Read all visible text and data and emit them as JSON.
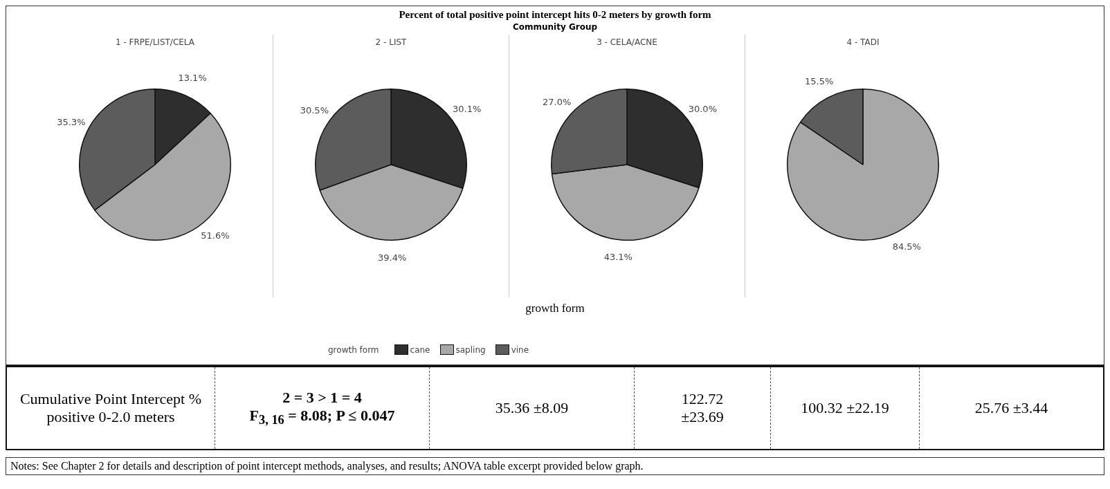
{
  "chart_data": [
    {
      "type": "other",
      "title": "Percent of total positive point intercept hits 0-2 meters by growth form",
      "subtitle": "Community Group",
      "xlabel": "growth form",
      "annotations": [
        "Cumulative Point Intercept % positive 0-2.0 meters",
        "2 = 3 > 1 = 4",
        "F$_{3, 16}$ = 8.08;  P ≤ 0.047",
        "35.36 ±8.09",
        "122.72 ±23.69",
        "100.32 ±22.19",
        "25.76 ±3.44",
        "Notes:  See Chapter 2 for details and description of point intercept methods, analyses, and results; ANOVA table excerpt provided below graph."
      ]
    },
    {
      "type": "pie",
      "title": "1 - FRPE/LIST/CELA",
      "categories": [
        "cane",
        "sapling",
        "vine"
      ],
      "values": [
        13.1,
        51.6,
        35.3
      ],
      "value_labels": [
        "13.1%",
        "51.6%",
        "35.3%"
      ],
      "colors": [
        "#2e2e2e",
        "#a8a8a8",
        "#5c5c5c"
      ],
      "legend": "bottom",
      "legend_title": "growth form"
    },
    {
      "type": "pie",
      "title": "2 - LIST",
      "categories": [
        null,
        null,
        null
      ],
      "values": [
        30.1,
        39.4,
        30.5
      ],
      "value_labels": [
        "30.1%",
        "39.4%",
        "30.5%"
      ],
      "colors": [
        "#2e2e2e",
        "#a8a8a8",
        "#5c5c5c"
      ]
    },
    {
      "type": "pie",
      "title": "3 - CELA/ACNE",
      "categories": [
        null,
        null,
        null
      ],
      "values": [
        30.0,
        43.1,
        27.0
      ],
      "value_labels": [
        "30.0%",
        "43.1%",
        "27.0%"
      ],
      "colors": [
        "#2e2e2e",
        "#a8a8a8",
        "#5c5c5c"
      ]
    },
    {
      "type": "pie",
      "title": "4 - TADI",
      "categories": [
        null,
        null,
        null
      ],
      "values": [
        null,
        84.5,
        15.5
      ],
      "value_labels": [
        null,
        "84.5%",
        "15.5%"
      ],
      "colors": [
        "#2e2e2e",
        "#a8a8a8",
        "#5c5c5c"
      ]
    }
  ]
}
